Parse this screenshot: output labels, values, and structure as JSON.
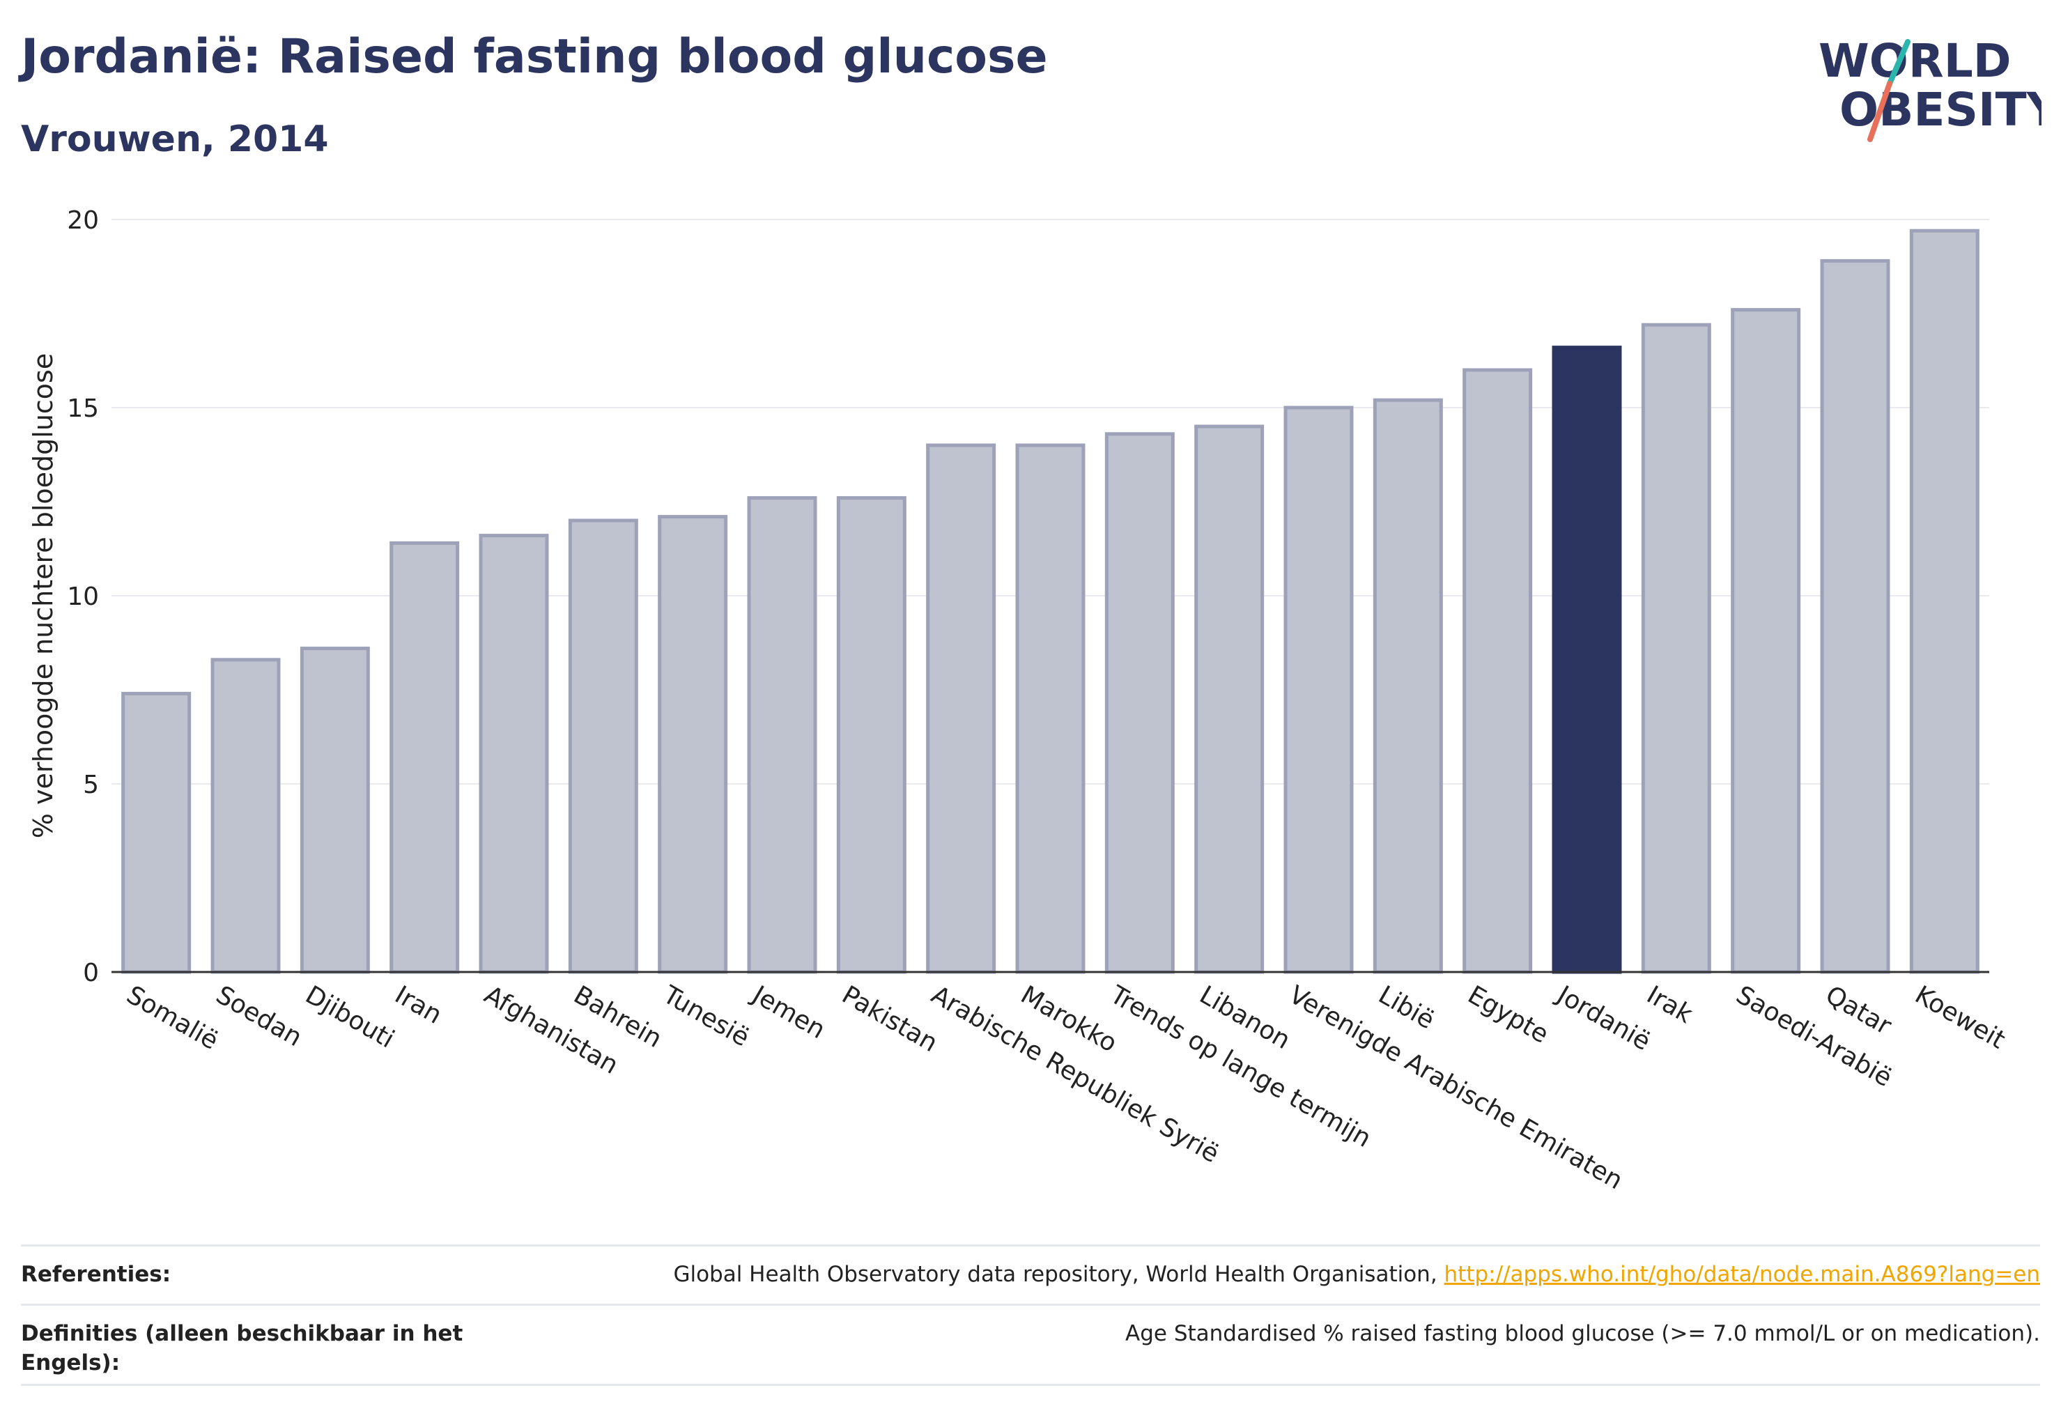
{
  "header": {
    "title": "Jordanië: Raised fasting blood glucose",
    "subtitle": "Vrouwen, 2014"
  },
  "logo": {
    "line1": "WORLD",
    "line2": "OBESITY",
    "slash_colors": [
      "#2bb5ac",
      "#e8705a"
    ],
    "text_color": "#2b3560"
  },
  "chart_data": {
    "type": "bar",
    "ylabel": "% verhoogde nuchtere bloedglucose",
    "ylim": [
      0,
      20
    ],
    "yticks": [
      0,
      5,
      10,
      15,
      20
    ],
    "grid": true,
    "categories": [
      "Somalië",
      "Soedan",
      "Djibouti",
      "Iran",
      "Afghanistan",
      "Bahrein",
      "Tunesië",
      "Jemen",
      "Pakistan",
      "Arabische Republiek Syrië",
      "Marokko",
      "Trends op lange termijn",
      "Libanon",
      "Verenigde Arabische Emiraten",
      "Libië",
      "Egypte",
      "Jordanië",
      "Irak",
      "Saoedi-Arabië",
      "Qatar",
      "Koeweit"
    ],
    "values": [
      7.4,
      8.3,
      8.6,
      11.4,
      11.6,
      12.0,
      12.1,
      12.6,
      12.6,
      14.0,
      14.0,
      14.3,
      14.5,
      15.0,
      15.2,
      16.0,
      16.6,
      17.2,
      17.6,
      18.9,
      19.7
    ],
    "highlight": "Jordanië",
    "colors": {
      "bar_fill": "#bfc2cf",
      "bar_stroke": "#9da2b8",
      "highlight": "#2b3560",
      "grid": "#e9e9ee",
      "axis": "#333333"
    }
  },
  "footer": {
    "references_label": "Referenties:",
    "references_text": "Global Health Observatory data repository, World Health Organisation, ",
    "references_link": "http://apps.who.int/gho/data/node.main.A869?lang=en",
    "definitions_label": "Definities (alleen beschikbaar in het Engels):",
    "definitions_text": "Age Standardised % raised fasting blood glucose (>= 7.0 mmol/L or on medication)."
  }
}
